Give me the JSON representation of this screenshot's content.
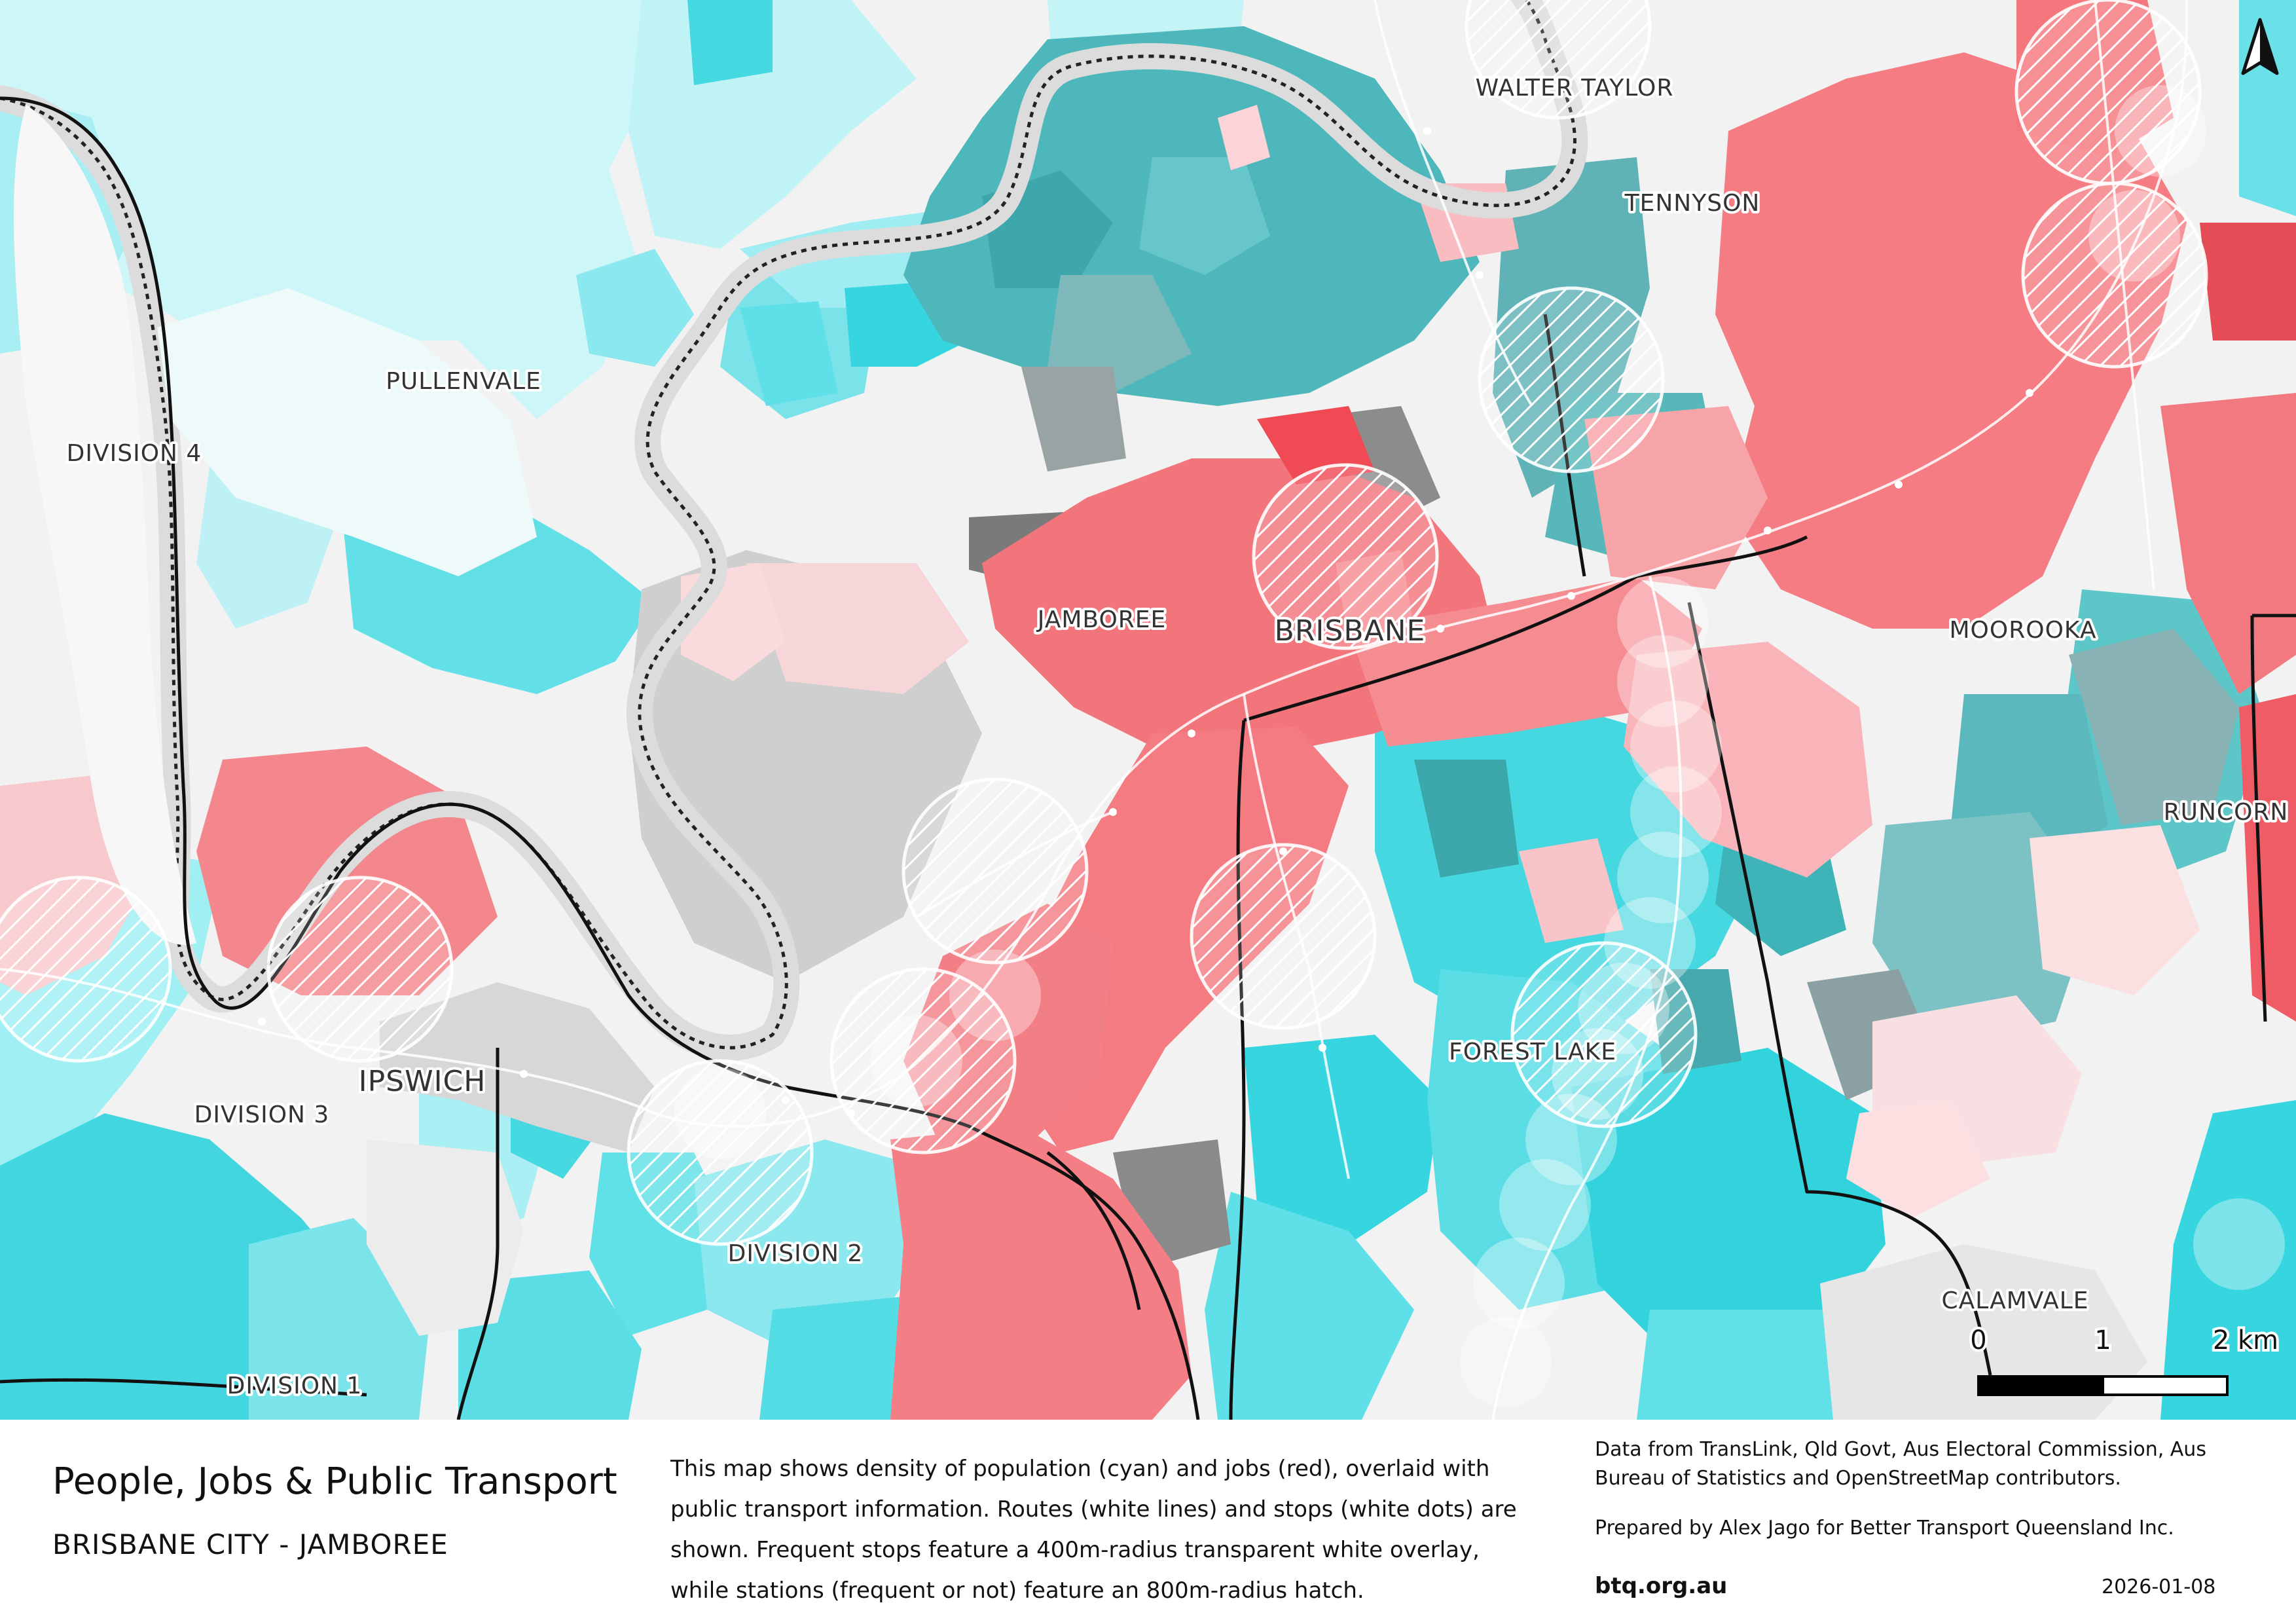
{
  "map": {
    "places": [
      {
        "id": "walter-taylor",
        "name": "WALTER TAYLOR"
      },
      {
        "id": "tennyson",
        "name": "TENNYSON"
      },
      {
        "id": "pullenvale",
        "name": "PULLENVALE"
      },
      {
        "id": "division-4",
        "name": "DIVISION 4"
      },
      {
        "id": "jamboree",
        "name": "JAMBOREE"
      },
      {
        "id": "brisbane",
        "name": "BRISBANE"
      },
      {
        "id": "moorooka",
        "name": "MOOROOKA"
      },
      {
        "id": "runcorn",
        "name": "RUNCORN"
      },
      {
        "id": "ipswich",
        "name": "IPSWICH"
      },
      {
        "id": "division-3",
        "name": "DIVISION 3"
      },
      {
        "id": "forest-lake",
        "name": "FOREST LAKE"
      },
      {
        "id": "division-2",
        "name": "DIVISION 2"
      },
      {
        "id": "division-1",
        "name": "DIVISION 1"
      },
      {
        "id": "calamvale",
        "name": "CALAMVALE"
      }
    ],
    "scale_bar": {
      "labels": [
        "0",
        "1",
        "2 km"
      ]
    },
    "colors": {
      "population": "#3fd6e0",
      "jobs": "#ef6f76",
      "mixed": "#9a9a9a",
      "river": "#d9d9d9",
      "boundary": "#111111",
      "overlay": "#ffffff"
    },
    "north_arrow": "north-arrow-icon"
  },
  "legend": {
    "title": "People, Jobs & Public Transport",
    "subtitle": "BRISBANE CITY - JAMBOREE",
    "description": "This map shows density of population (cyan) and jobs (red), overlaid with public transport information. Routes (white lines) and stops (white dots) are shown. Frequent stops feature a 400m-radius transparent white overlay, while stations (frequent or not) feature an 800m-radius hatch.",
    "credits": "Data from TransLink,  Qld Govt,  Aus Electoral Commission, Aus Bureau of Statistics and OpenStreetMap contributors.",
    "prepared": "Prepared by Alex Jago for Better Transport Queensland Inc.",
    "website": "btq.org.au",
    "date": "2026-01-08"
  }
}
